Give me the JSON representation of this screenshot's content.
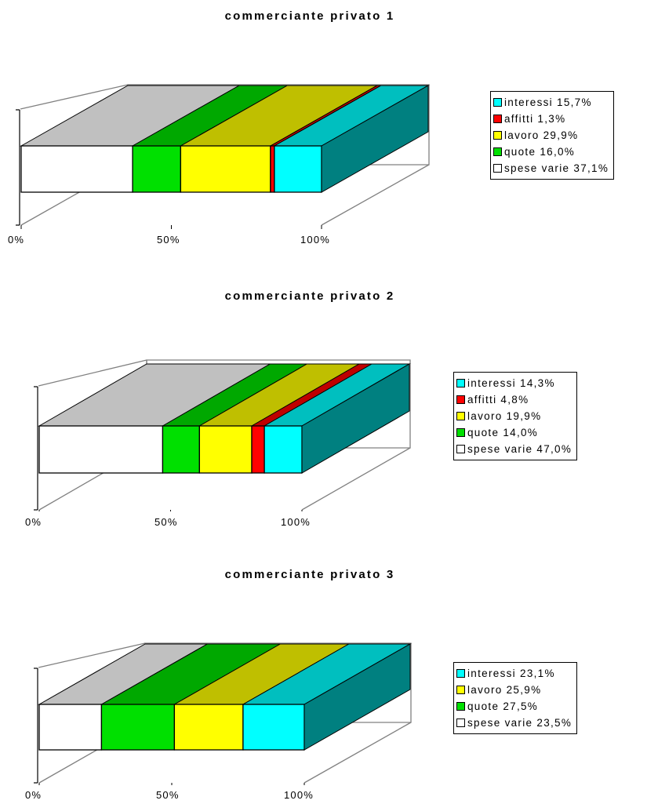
{
  "chart_data": [
    {
      "type": "bar",
      "orientation": "horizontal-stacked-100-3d",
      "title": "commerciante privato 1",
      "x_ticks": [
        "0%",
        "50%",
        "100%"
      ],
      "xlim": [
        0,
        100
      ],
      "legend_position": "right",
      "series": [
        {
          "name": "spese varie",
          "value": 37.1,
          "label": "spese varie 37,1%",
          "color": "#ffffff"
        },
        {
          "name": "quote",
          "value": 16.0,
          "label": "quote 16,0%",
          "color": "#00e000"
        },
        {
          "name": "lavoro",
          "value": 29.9,
          "label": "lavoro 29,9%",
          "color": "#ffff00"
        },
        {
          "name": "affitti",
          "value": 1.3,
          "label": "affitti 1,3%",
          "color": "#ff0000"
        },
        {
          "name": "interessi",
          "value": 15.7,
          "label": "interessi 15,7%",
          "color": "#00ffff"
        }
      ]
    },
    {
      "type": "bar",
      "orientation": "horizontal-stacked-100-3d",
      "title": "commerciante privato 2",
      "x_ticks": [
        "0%",
        "50%",
        "100%"
      ],
      "xlim": [
        0,
        100
      ],
      "legend_position": "right",
      "series": [
        {
          "name": "spese varie",
          "value": 47.0,
          "label": "spese varie 47,0%",
          "color": "#ffffff"
        },
        {
          "name": "quote",
          "value": 14.0,
          "label": "quote 14,0%",
          "color": "#00e000"
        },
        {
          "name": "lavoro",
          "value": 19.9,
          "label": "lavoro 19,9%",
          "color": "#ffff00"
        },
        {
          "name": "affitti",
          "value": 4.8,
          "label": "affitti 4,8%",
          "color": "#ff0000"
        },
        {
          "name": "interessi",
          "value": 14.3,
          "label": "interessi 14,3%",
          "color": "#00ffff"
        }
      ]
    },
    {
      "type": "bar",
      "orientation": "horizontal-stacked-100-3d",
      "title": "commerciante privato 3",
      "x_ticks": [
        "0%",
        "50%",
        "100%"
      ],
      "xlim": [
        0,
        100
      ],
      "legend_position": "right",
      "series": [
        {
          "name": "spese varie",
          "value": 23.5,
          "label": "spese varie 23,5%",
          "color": "#ffffff"
        },
        {
          "name": "quote",
          "value": 27.5,
          "label": "quote 27,5%",
          "color": "#00e000"
        },
        {
          "name": "lavoro",
          "value": 25.9,
          "label": "lavoro 25,9%",
          "color": "#ffff00"
        },
        {
          "name": "interessi",
          "value": 23.1,
          "label": "interessi 23,1%",
          "color": "#00ffff"
        }
      ]
    }
  ]
}
